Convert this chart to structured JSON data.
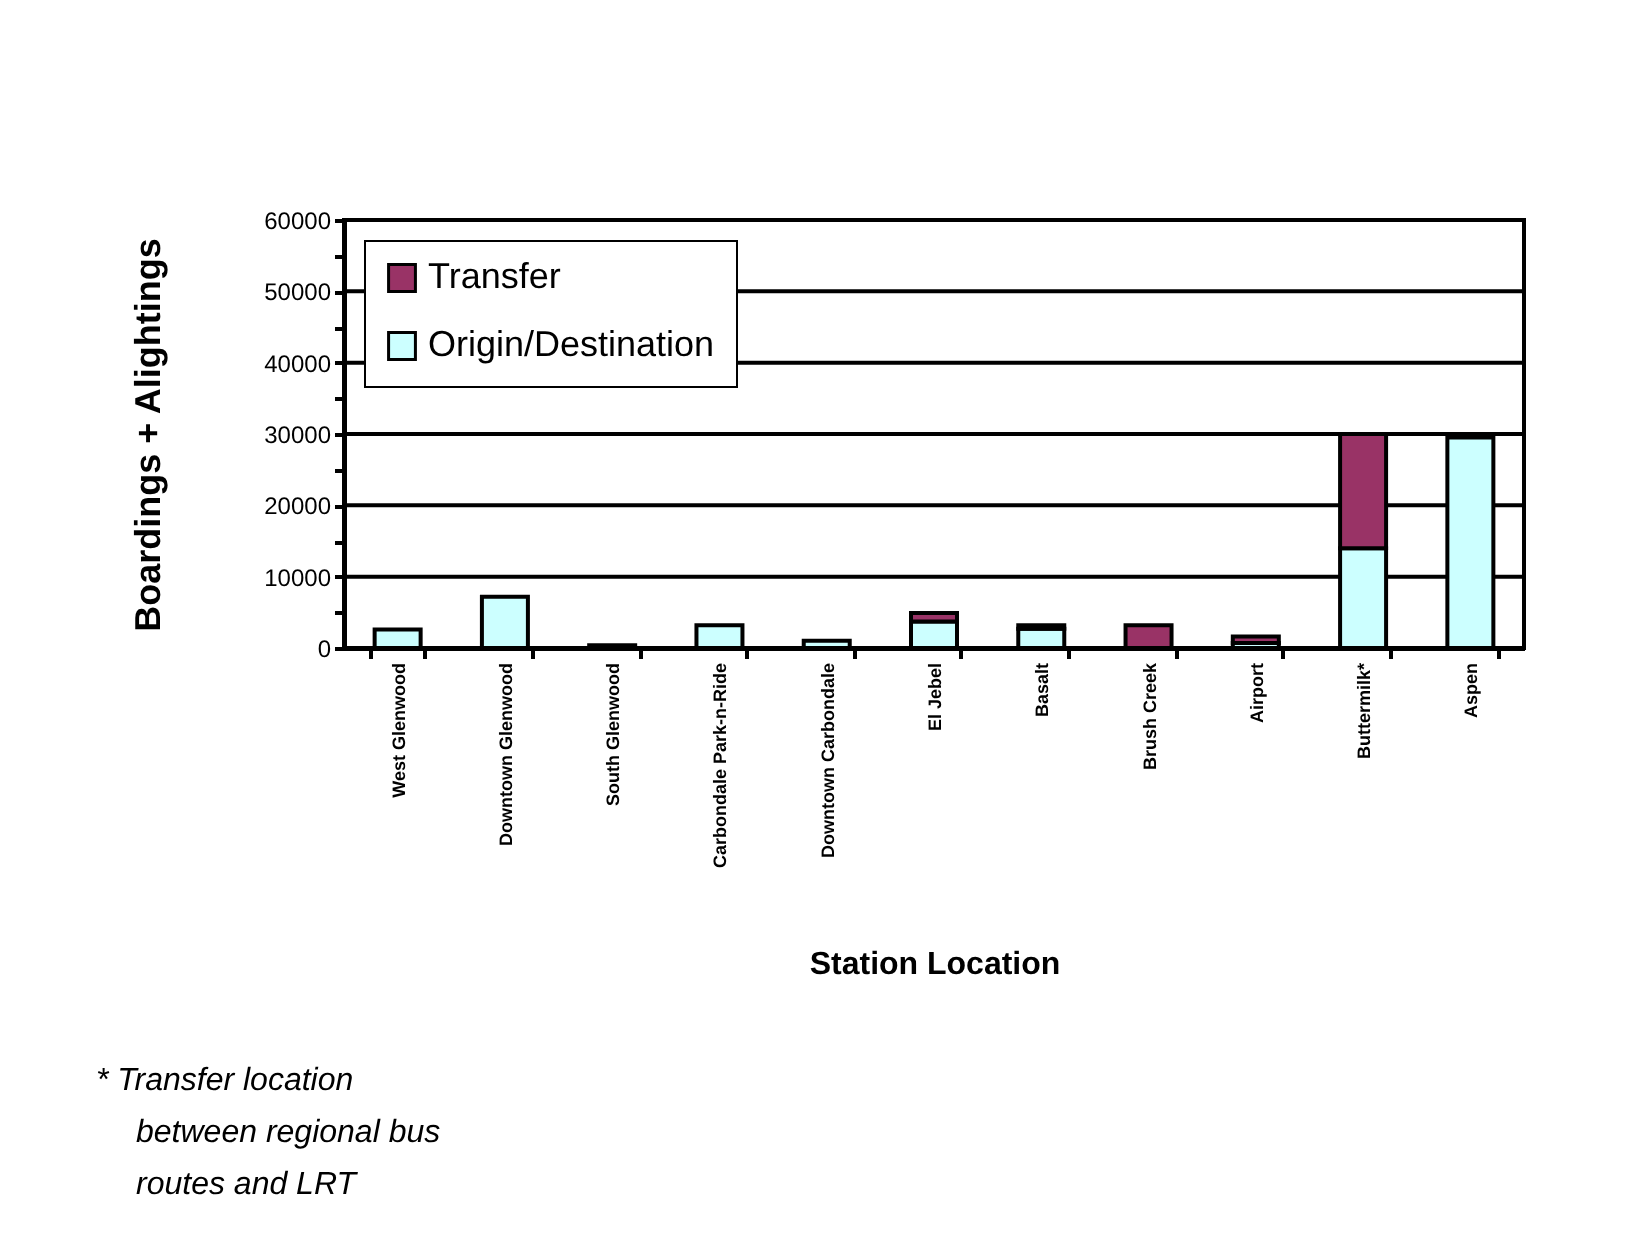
{
  "chart_data": {
    "type": "bar",
    "stacked": true,
    "xlabel": "Station Location",
    "ylabel": "Boardings + Alightings",
    "categories": [
      "West Glenwood",
      "Downtown Glenwood",
      "South Glenwood",
      "Carbondale Park-n-Ride",
      "Downtown Carbondale",
      "El Jebel",
      "Basalt",
      "Brush Creek",
      "Airport",
      "Buttermilk*",
      "Aspen"
    ],
    "series": [
      {
        "name": "Origin/Destination",
        "color": "#ccffff",
        "values": [
          2600,
          7200,
          400,
          3200,
          1000,
          3700,
          2700,
          null,
          700,
          14000,
          29500
        ]
      },
      {
        "name": "Transfer",
        "color": "#993366",
        "values": [
          0,
          0,
          0,
          0,
          0,
          1200,
          500,
          3200,
          900,
          16000,
          0
        ]
      }
    ],
    "ylim": [
      0,
      60000
    ],
    "yticks": [
      0,
      {
        "value": 5000,
        "label": null
      },
      10000,
      {
        "value": 15000,
        "label": null
      },
      20000,
      {
        "value": 25000,
        "label": null
      },
      30000,
      {
        "value": 35000,
        "label": null
      },
      40000,
      {
        "value": 45000,
        "label": null
      },
      50000,
      {
        "value": 55000,
        "label": null
      },
      60000
    ],
    "grid": "y",
    "legend": "top left",
    "annotations": [
      "* Transfer location between regional bus routes and LRT"
    ]
  }
}
